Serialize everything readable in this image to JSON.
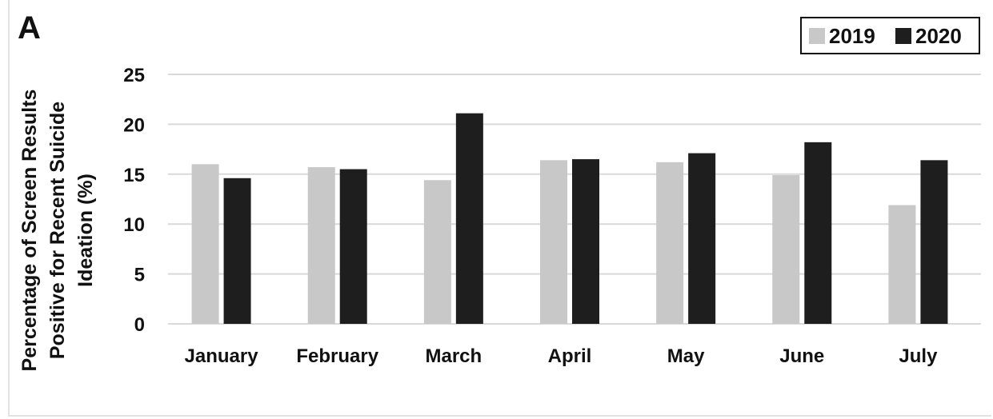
{
  "panel_label": "A",
  "chart_data": {
    "type": "bar",
    "title": "",
    "xlabel": "",
    "ylabel_lines": [
      "Percentage of Screen Results",
      "Positive for Recent Suicide",
      "Ideation (%)"
    ],
    "categories": [
      "January",
      "February",
      "March",
      "April",
      "May",
      "June",
      "July"
    ],
    "series": [
      {
        "name": "2019",
        "color": "#c8c8c8",
        "values": [
          16.0,
          15.7,
          14.4,
          16.4,
          16.2,
          14.9,
          11.9
        ]
      },
      {
        "name": "2020",
        "color": "#1e1e1e",
        "values": [
          14.6,
          15.5,
          21.1,
          16.5,
          17.1,
          18.2,
          16.4
        ]
      }
    ],
    "ylim": [
      0,
      25
    ],
    "yticks": [
      0,
      5,
      10,
      15,
      20,
      25
    ],
    "grid": true,
    "legend_position": "top-right"
  }
}
